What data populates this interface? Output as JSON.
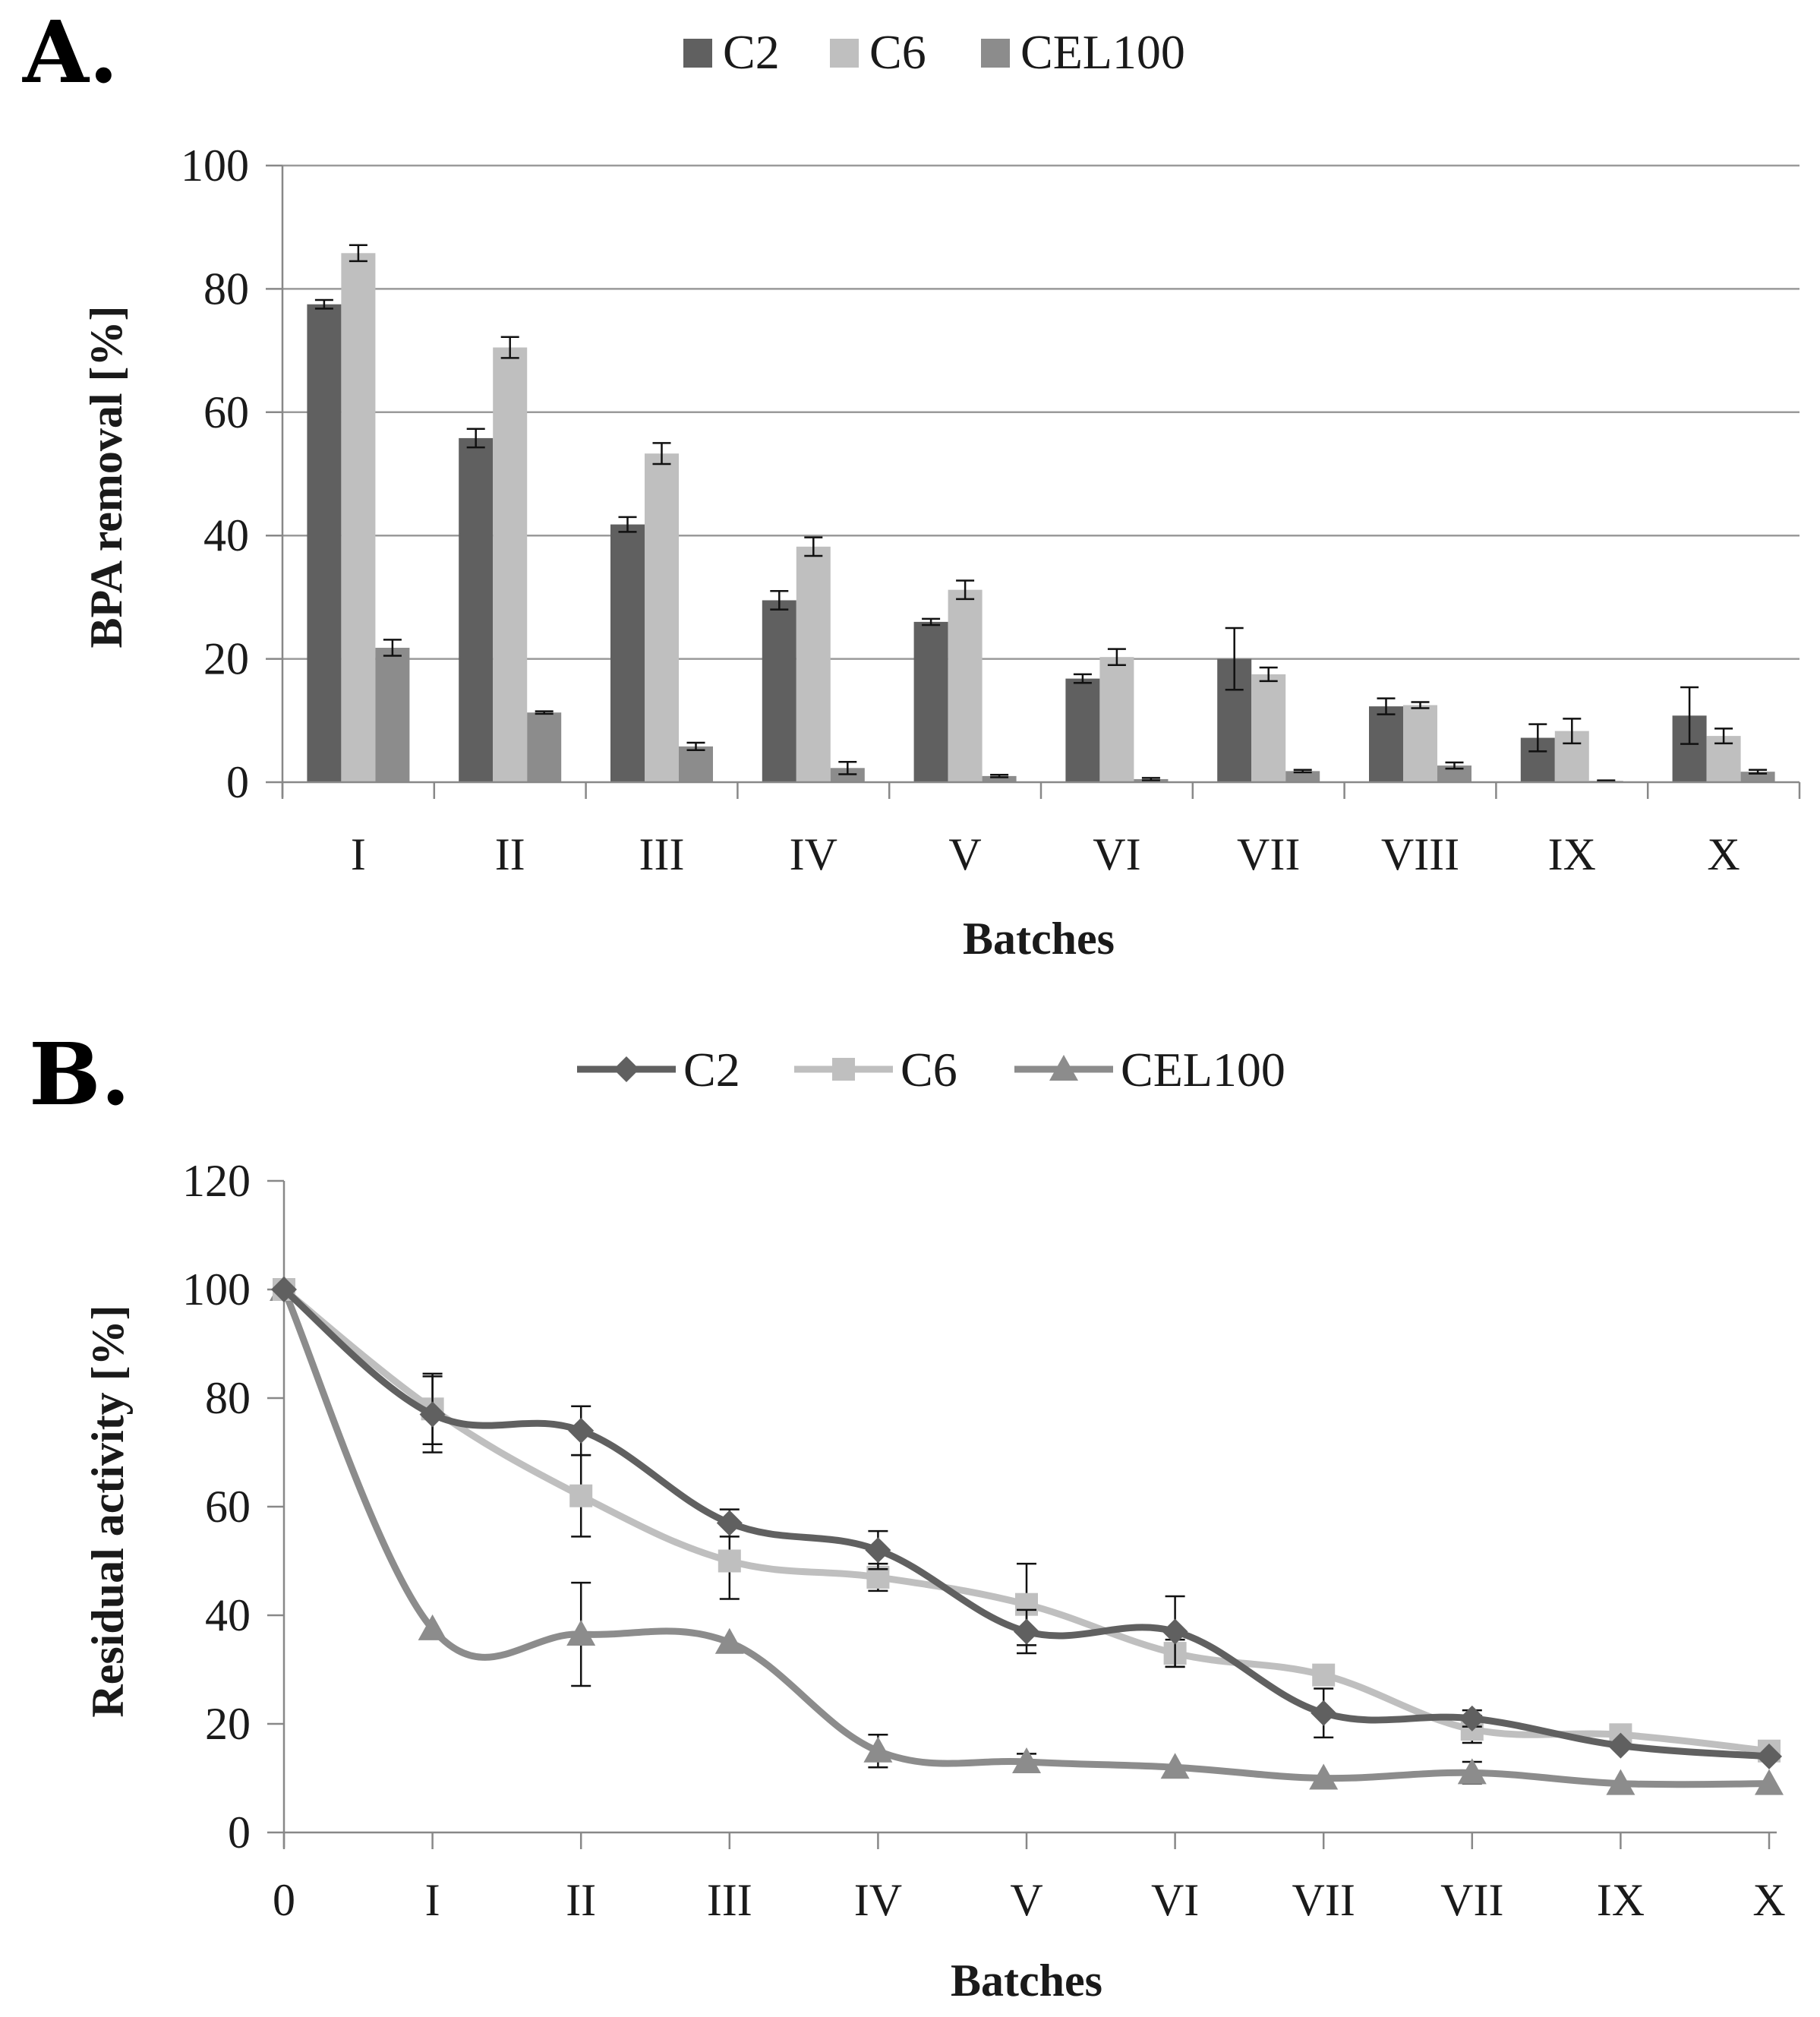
{
  "chart_data": [
    {
      "panel": "A.",
      "type": "bar",
      "title": "",
      "xlabel": "Batches",
      "ylabel": "BPA removal [%]",
      "ylim": [
        0,
        100
      ],
      "yticks": [
        0,
        20,
        40,
        60,
        80,
        100
      ],
      "grid": true,
      "legend_position": "top-center",
      "categories": [
        "I",
        "II",
        "III",
        "IV",
        "V",
        "VI",
        "VII",
        "VIII",
        "IX",
        "X"
      ],
      "series": [
        {
          "name": "C2",
          "color": "#606060",
          "values": [
            77.5,
            55.8,
            41.8,
            29.5,
            26.0,
            16.8,
            20.0,
            12.3,
            7.2,
            10.8
          ],
          "errors": [
            0.7,
            1.5,
            1.2,
            1.5,
            0.5,
            0.7,
            5.0,
            1.3,
            2.2,
            4.6
          ]
        },
        {
          "name": "C6",
          "color": "#bfbfbf",
          "values": [
            85.8,
            70.5,
            53.3,
            38.2,
            31.2,
            20.3,
            17.5,
            12.5,
            8.3,
            7.5
          ],
          "errors": [
            1.3,
            1.7,
            1.7,
            1.5,
            1.5,
            1.3,
            1.1,
            0.5,
            2.0,
            1.2
          ]
        },
        {
          "name": "CEL100",
          "color": "#8c8c8c",
          "values": [
            21.8,
            11.3,
            5.8,
            2.3,
            1.0,
            0.5,
            1.8,
            2.7,
            0.2,
            1.7
          ],
          "errors": [
            1.3,
            0.2,
            0.6,
            1.0,
            0.2,
            0.2,
            0.2,
            0.5,
            0.1,
            0.3
          ]
        }
      ]
    },
    {
      "panel": "B.",
      "type": "line",
      "title": "",
      "xlabel": "Batches",
      "ylabel": "Residual activity [%]",
      "ylim": [
        0,
        120
      ],
      "yticks": [
        0,
        20,
        40,
        60,
        80,
        100,
        120
      ],
      "grid": false,
      "legend_position": "top-center",
      "categories": [
        "0",
        "I",
        "II",
        "III",
        "IV",
        "V",
        "VI",
        "VII",
        "VII",
        "IX",
        "X"
      ],
      "series": [
        {
          "name": "C2",
          "color": "#606060",
          "marker": "diamond",
          "values": [
            100,
            77,
            74,
            57,
            52,
            37,
            37,
            22,
            21,
            16,
            14
          ],
          "errors": [
            0,
            7,
            4.5,
            2.5,
            3.5,
            4,
            6.5,
            4.5,
            1.5,
            0,
            0
          ]
        },
        {
          "name": "C6",
          "color": "#bfbfbf",
          "marker": "square",
          "values": [
            100,
            78,
            62,
            50,
            47,
            42,
            33,
            29,
            19,
            18,
            15
          ],
          "errors": [
            0,
            6.5,
            7.5,
            7,
            2.5,
            7.5,
            2.5,
            0,
            2.5,
            0,
            0
          ]
        },
        {
          "name": "CEL100",
          "color": "#8c8c8c",
          "marker": "triangle",
          "values": [
            100,
            37.5,
            36.5,
            35,
            15,
            13,
            12,
            10,
            11,
            9,
            9
          ],
          "errors": [
            0,
            0,
            9.5,
            0,
            3,
            1.5,
            0,
            0,
            2,
            0,
            0
          ]
        }
      ]
    }
  ]
}
